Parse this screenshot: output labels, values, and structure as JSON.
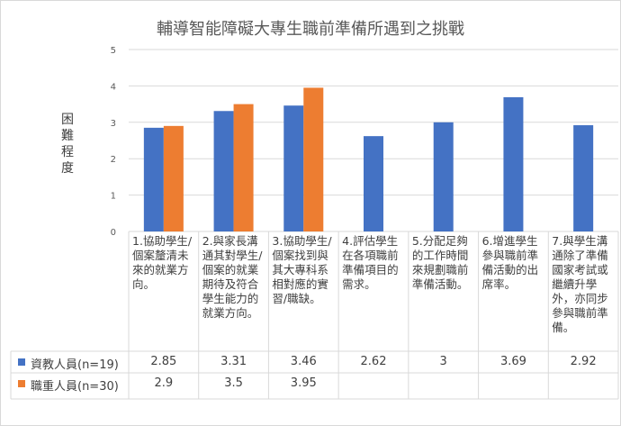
{
  "chart_data": {
    "type": "bar",
    "title": "輔導智能障礙大專生職前準備所遇到之挑戰",
    "ylabel": "困難程度",
    "ylim": [
      0,
      5
    ],
    "yticks": [
      0,
      1,
      2,
      3,
      4,
      5
    ],
    "grid": true,
    "legend": "data-table",
    "categories": [
      "1.協助學生/個案釐清未來的就業方向。",
      "2.與家長溝通其對學生/個案的就業期待及符合學生能力的就業方向。",
      "3.協助學生/個案找到與其大專科系相對應的實習/職缺。",
      "4.評估學生在各項職前準備項目的需求。",
      "5.分配足夠的工作時間來規劃職前準備活動。",
      "6.增進學生參與職前準備活動的出席率。",
      "7.與學生溝通除了準備國家考試或繼續升學外，亦同步參與職前準備。"
    ],
    "series": [
      {
        "name": "資教人員(n=19)",
        "color": "#4472c4",
        "values": [
          2.85,
          3.31,
          3.46,
          2.62,
          3,
          3.69,
          2.92
        ],
        "labels": [
          "2.85",
          "3.31",
          "3.46",
          "2.62",
          "3",
          "3.69",
          "2.92"
        ]
      },
      {
        "name": "職重人員(n=30)",
        "color": "#ed7d31",
        "values": [
          2.9,
          3.5,
          3.95,
          null,
          null,
          null,
          null
        ],
        "labels": [
          "2.9",
          "3.5",
          "3.95",
          "",
          "",
          "",
          ""
        ]
      }
    ]
  }
}
